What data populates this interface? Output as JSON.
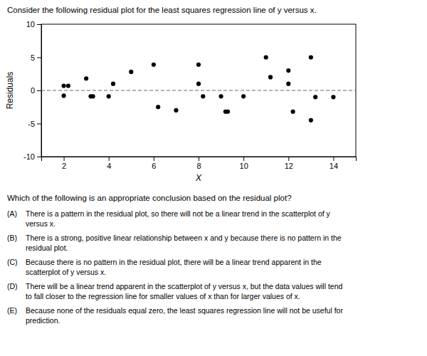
{
  "chart_data": {
    "type": "scatter",
    "title": "Consider the following residual plot for the least squares regression line of y versus x.",
    "xlabel": "X",
    "ylabel": "Residuals",
    "xlim": [
      1,
      15
    ],
    "ylim": [
      -10,
      10
    ],
    "xticks": [
      2,
      4,
      6,
      8,
      10,
      12,
      14
    ],
    "yticks": [
      -10,
      -5,
      0,
      5,
      10
    ],
    "grid": false,
    "color": "#000000",
    "marker": "circle",
    "x": [
      2.0,
      2.2,
      2.0,
      3.0,
      3.2,
      3.3,
      4.0,
      4.2,
      5.0,
      6.0,
      6.2,
      7.0,
      8.0,
      8.0,
      8.2,
      9.0,
      9.2,
      9.3,
      10.0,
      11.0,
      11.2,
      12.0,
      12.0,
      12.2,
      13.0,
      13.2,
      13.0,
      14.0
    ],
    "values": [
      0.7,
      0.7,
      -0.8,
      1.8,
      -0.9,
      -0.9,
      -0.9,
      1.0,
      2.8,
      3.9,
      -2.5,
      -3.0,
      1.0,
      3.9,
      -0.9,
      -0.9,
      -3.2,
      -3.2,
      -0.9,
      5.0,
      2.0,
      3.0,
      1.0,
      -3.2,
      5.0,
      -1.0,
      -4.5,
      -1.0
    ],
    "hline": {
      "value": 0,
      "color": "#666666",
      "line_style": "dashed"
    },
    "annotations": [
      "Which of the following is an appropriate conclusion based on the residual plot?",
      "(A)",
      "There is a pattern in the residual plot, so there will not be a linear trend in the scatterplot of y\nversus x.",
      "(B)",
      "There is a strong, positive linear relationship between x and y because there is no pattern in the\nresidual plot.",
      "(C)",
      "Because there is no pattern in the residual plot, there will be a linear trend apparent in the\nscatterplot of y versus x.",
      "(D)",
      "There will be a linear trend apparent in the scatterplot of y versus x, but the data values will tend\nto fall closer to the regression line for smaller values of x than for larger values of x.",
      "(E)",
      "Because none of the residuals equal zero, the least squares regression line will not be useful for\nprediction."
    ]
  }
}
